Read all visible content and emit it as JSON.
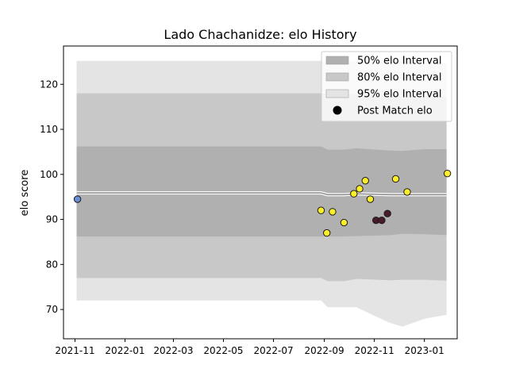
{
  "chart_data": {
    "type": "scatter",
    "title": "Lado Chachanidze: elo History",
    "xlabel": "",
    "ylabel": "elo score",
    "xlim": [
      "2021-10-18",
      "2023-02-10"
    ],
    "ylim": [
      63.5,
      128.5
    ],
    "x_ticks": [
      "2021-11",
      "2022-01",
      "2022-03",
      "2022-05",
      "2022-07",
      "2022-09",
      "2022-11",
      "2023-01"
    ],
    "y_ticks": [
      70,
      80,
      90,
      100,
      110,
      120
    ],
    "grid": false,
    "legend": {
      "position": "top-right",
      "entries": [
        "50% elo Interval",
        "80% elo Interval",
        "95% elo Interval",
        "Post Match elo"
      ]
    },
    "colors": {
      "band_50": "#b0b0b0",
      "band_80": "#c8c8c8",
      "band_95": "#e4e4e4",
      "mean_line": "#8a8a8a",
      "point_edge": "#1a1a1a"
    },
    "bands": {
      "x": [
        "2021-11-03",
        "2022-08-28",
        "2022-09-05",
        "2022-09-25",
        "2022-10-10",
        "2022-11-20",
        "2022-11-21",
        "2022-12-05",
        "2023-01-02",
        "2023-01-28"
      ],
      "mean": [
        95.9,
        95.9,
        95.5,
        95.5,
        95.7,
        95.5,
        95.5,
        95.5,
        95.5,
        95.5
      ],
      "lower_50": [
        86.2,
        86.2,
        86.2,
        86.2,
        86.3,
        86.5,
        86.5,
        86.8,
        86.7,
        86.5
      ],
      "upper_50": [
        106.2,
        106.2,
        105.5,
        105.5,
        105.8,
        105.3,
        105.3,
        105.2,
        105.6,
        105.6
      ],
      "lower_80": [
        77.0,
        77.0,
        76.3,
        76.3,
        76.8,
        76.5,
        76.5,
        76.6,
        76.6,
        76.4
      ],
      "upper_80": [
        118.0,
        118.0,
        118.0,
        118.0,
        117.8,
        117.5,
        117.5,
        117.3,
        117.3,
        117.3
      ],
      "lower_95": [
        72.0,
        72.0,
        70.5,
        70.5,
        70.5,
        67.0,
        67.0,
        66.2,
        68.0,
        68.8
      ],
      "upper_95": [
        125.2,
        125.2,
        125.2,
        125.2,
        125.2,
        125.2,
        125.2,
        125.0,
        124.8,
        124.8
      ]
    },
    "points": [
      {
        "x": "2021-11-04",
        "y": 94.5,
        "color": "#6b8fd6"
      },
      {
        "x": "2022-08-28",
        "y": 92.0,
        "color": "#ffef2a"
      },
      {
        "x": "2022-09-04",
        "y": 87.0,
        "color": "#ffef2a"
      },
      {
        "x": "2022-09-11",
        "y": 91.7,
        "color": "#ffef2a"
      },
      {
        "x": "2022-09-25",
        "y": 89.3,
        "color": "#ffef2a"
      },
      {
        "x": "2022-10-07",
        "y": 95.7,
        "color": "#ffef2a"
      },
      {
        "x": "2022-10-14",
        "y": 96.8,
        "color": "#ffef2a"
      },
      {
        "x": "2022-10-21",
        "y": 98.6,
        "color": "#ffef2a"
      },
      {
        "x": "2022-10-27",
        "y": 94.5,
        "color": "#ffef2a"
      },
      {
        "x": "2022-11-03",
        "y": 89.8,
        "color": "#4a1a2a"
      },
      {
        "x": "2022-11-10",
        "y": 89.8,
        "color": "#4a1a2a"
      },
      {
        "x": "2022-11-17",
        "y": 91.3,
        "color": "#4a1a2a"
      },
      {
        "x": "2022-11-27",
        "y": 99.0,
        "color": "#ffef2a"
      },
      {
        "x": "2022-12-11",
        "y": 96.1,
        "color": "#ffef2a"
      },
      {
        "x": "2023-01-29",
        "y": 100.2,
        "color": "#ffef2a"
      }
    ]
  }
}
